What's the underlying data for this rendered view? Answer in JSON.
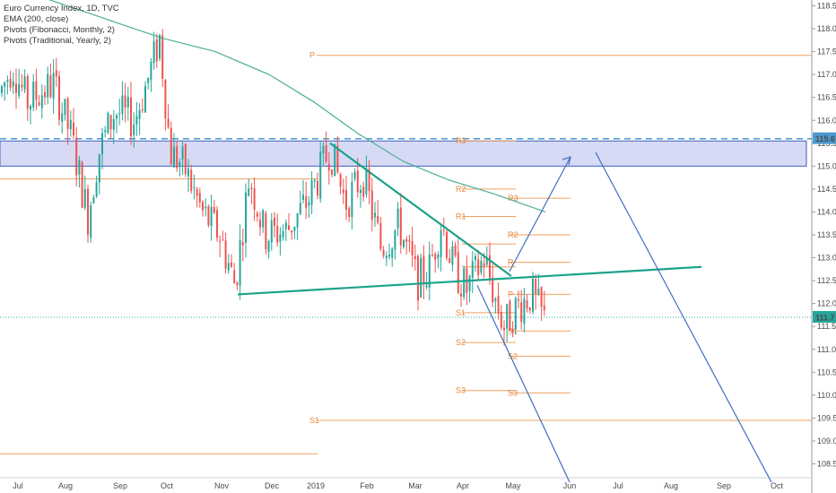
{
  "legend": {
    "title": "Euro Currency Index, 1D, TVC",
    "ema": "EMA (200, close)",
    "pivots_fib": "Pivots (Fibonacci, Monthly, 2)",
    "pivots_trad": "Pivots (Traditional, Yearly, 2)"
  },
  "chart_data": {
    "type": "candlestick",
    "title": "Euro Currency Index, 1D, TVC",
    "x_ticks": [
      "Jul",
      "Aug",
      "Sep",
      "Oct",
      "Nov",
      "Dec",
      "2019",
      "Feb",
      "Mar",
      "Apr",
      "May",
      "Jun",
      "Jul",
      "Aug",
      "Sep",
      "Oct"
    ],
    "y_ticks": [
      "118.5",
      "118.0",
      "117.5",
      "117.0",
      "116.5",
      "116.0",
      "115.5",
      "115.0",
      "114.5",
      "114.0",
      "113.5",
      "113.0",
      "112.5",
      "112.0",
      "111.5",
      "111.0",
      "110.5",
      "110.0",
      "109.5",
      "109.0",
      "108.5"
    ],
    "ylim": [
      108.3,
      118.6
    ],
    "last_price": "111.7",
    "zone_price": "115.6",
    "colors": {
      "up": "#26a69a",
      "down": "#ef5350",
      "ema": "#4caf93",
      "pivot": "#f0a060",
      "trend": "#1ba38a",
      "projection": "#3f6fc0",
      "zone_fill": "#c8cef0",
      "zone_border": "#3f5fc0"
    },
    "pivot_labels": [
      {
        "text": "P",
        "price": 117.42
      },
      {
        "text": "R3",
        "price": 115.55
      },
      {
        "text": "R3",
        "price": 114.3
      },
      {
        "text": "R2",
        "price": 114.5
      },
      {
        "text": "R1",
        "price": 113.9
      },
      {
        "text": "R2",
        "price": 113.5
      },
      {
        "text": "R",
        "price": 112.9
      },
      {
        "text": "P",
        "price": 112.2
      },
      {
        "text": "S1",
        "price": 111.8
      },
      {
        "text": "S1",
        "price": 111.4
      },
      {
        "text": "S2",
        "price": 111.15
      },
      {
        "text": "S2",
        "price": 110.85
      },
      {
        "text": "S3",
        "price": 110.1
      },
      {
        "text": "S3",
        "price": 110.05
      },
      {
        "text": "S1",
        "price": 109.45
      }
    ]
  }
}
